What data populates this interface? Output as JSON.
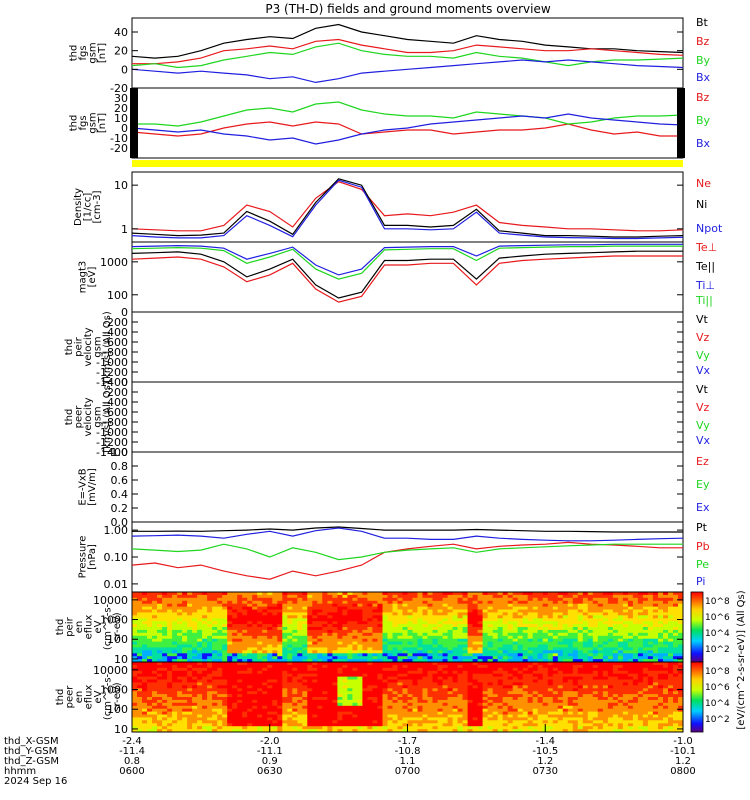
{
  "title": "P3 (TH-D) fields and ground moments overview",
  "footer": {
    "row_labels": [
      "thd_X-GSM",
      "thd_Y-GSM",
      "thd_Z-GSM",
      "hhmm",
      "2024 Sep 16"
    ],
    "x_gsm": [
      "-2.4",
      "-2.0",
      "-1.7",
      "-1.4",
      "-1.0"
    ],
    "y_gsm": [
      "-11.4",
      "-11.1",
      "-10.8",
      "-10.5",
      "-10.1"
    ],
    "z_gsm": [
      "0.8",
      "0.9",
      "1.1",
      "1.2",
      "1.2"
    ],
    "hhmm": [
      "0600",
      "0630",
      "0700",
      "0730",
      "0800"
    ]
  },
  "colorbar": {
    "label": "[eV/(cm^2-s-sr-eV)] (All Qs)",
    "ticks": [
      "10^8",
      "10^6",
      "10^4",
      "10^2"
    ]
  },
  "colors": {
    "black": "#000000",
    "red": "#e8191c",
    "green": "#1fd61f",
    "blue": "#1f1fe0",
    "yellow": "#ffff00"
  },
  "chart_data": [
    {
      "id": "fgs",
      "type": "line",
      "ylabel": [
        "thd",
        "fgs",
        "gsm",
        "[nT]"
      ],
      "ylim": [
        -20,
        55
      ],
      "yticks": [
        "40",
        "20",
        "0",
        "-20"
      ],
      "ytick_values": [
        40,
        20,
        0,
        -20
      ],
      "legend": [
        {
          "name": "Bt",
          "color": "#000000"
        },
        {
          "name": "Bz",
          "color": "#e8191c"
        },
        {
          "name": "By",
          "color": "#1fd61f"
        },
        {
          "name": "Bx",
          "color": "#1f1fe0"
        }
      ],
      "x": [
        0,
        5,
        10,
        15,
        20,
        25,
        30,
        35,
        40,
        45,
        50,
        55,
        60,
        65,
        70,
        75,
        80,
        85,
        90,
        95,
        100,
        105,
        110,
        115,
        120
      ],
      "series": [
        {
          "values": [
            14,
            12,
            14,
            20,
            28,
            32,
            35,
            33,
            44,
            48,
            40,
            36,
            32,
            30,
            28,
            36,
            32,
            30,
            26,
            24,
            22,
            22,
            20,
            19,
            18
          ]
        },
        {
          "values": [
            6,
            6,
            8,
            12,
            20,
            22,
            25,
            22,
            30,
            32,
            26,
            22,
            18,
            18,
            20,
            26,
            24,
            22,
            20,
            20,
            22,
            20,
            18,
            16,
            15
          ]
        },
        {
          "values": [
            4,
            6,
            2,
            4,
            10,
            14,
            18,
            16,
            24,
            28,
            20,
            16,
            14,
            14,
            12,
            18,
            14,
            12,
            8,
            4,
            8,
            10,
            10,
            11,
            12
          ]
        },
        {
          "values": [
            0,
            -2,
            -4,
            -2,
            -4,
            -6,
            -10,
            -8,
            -14,
            -10,
            -4,
            -2,
            0,
            2,
            4,
            6,
            8,
            10,
            8,
            10,
            8,
            6,
            4,
            3,
            2
          ]
        }
      ]
    },
    {
      "id": "fgs_components",
      "type": "line",
      "ylabel": [
        "thd",
        "fgs",
        "gsm",
        "[nT]"
      ],
      "ylim": [
        -30,
        40
      ],
      "yticks": [
        "30",
        "20",
        "10",
        "0",
        "-10",
        "-20"
      ],
      "ytick_values": [
        30,
        20,
        10,
        0,
        -10,
        -20
      ],
      "legend": [
        {
          "name": "Bz",
          "color": "#e8191c"
        },
        {
          "name": "By",
          "color": "#1fd61f"
        },
        {
          "name": "Bx",
          "color": "#1f1fe0"
        }
      ],
      "x": [
        0,
        5,
        10,
        15,
        20,
        25,
        30,
        35,
        40,
        45,
        50,
        55,
        60,
        65,
        70,
        75,
        80,
        85,
        90,
        95,
        100,
        105,
        110,
        115,
        120
      ],
      "series": [
        {
          "values": [
            -4,
            -6,
            -8,
            -6,
            0,
            4,
            6,
            2,
            6,
            4,
            -6,
            -4,
            -2,
            -2,
            -6,
            -4,
            -2,
            -2,
            0,
            4,
            -2,
            -6,
            -4,
            -8,
            -8
          ]
        },
        {
          "values": [
            4,
            4,
            2,
            6,
            12,
            18,
            20,
            16,
            24,
            26,
            18,
            14,
            12,
            12,
            10,
            16,
            14,
            12,
            10,
            4,
            6,
            10,
            12,
            12,
            13
          ]
        },
        {
          "values": [
            0,
            -2,
            -4,
            -2,
            -6,
            -8,
            -12,
            -10,
            -16,
            -12,
            -6,
            -2,
            0,
            4,
            6,
            8,
            10,
            12,
            10,
            14,
            10,
            8,
            6,
            4,
            3
          ]
        }
      ]
    },
    {
      "id": "density",
      "type": "line",
      "yscale": "log",
      "ylabel": [
        "Density",
        "[1/cc]",
        "[cm-3]"
      ],
      "ylim": [
        0.5,
        20
      ],
      "yticks": [
        "10",
        "1"
      ],
      "ytick_values": [
        10,
        1
      ],
      "legend": [
        {
          "name": "Ne",
          "color": "#e8191c"
        },
        {
          "name": "Ni",
          "color": "#000000"
        },
        {
          "name": "Npot",
          "color": "#1f1fe0"
        }
      ],
      "x": [
        0,
        5,
        10,
        15,
        20,
        25,
        30,
        35,
        40,
        45,
        50,
        55,
        60,
        65,
        70,
        75,
        80,
        85,
        90,
        95,
        100,
        105,
        110,
        115,
        120
      ],
      "series": [
        {
          "values": [
            1.0,
            0.95,
            0.9,
            0.9,
            1.2,
            3.5,
            2.5,
            1.1,
            5.0,
            12,
            8,
            2.0,
            2.2,
            2.0,
            2.4,
            3.5,
            1.4,
            1.2,
            1.1,
            1.0,
            1.0,
            0.95,
            0.9,
            0.9,
            0.95
          ]
        },
        {
          "values": [
            0.8,
            0.75,
            0.7,
            0.72,
            0.8,
            2.5,
            1.5,
            0.75,
            4.0,
            14,
            10,
            1.2,
            1.2,
            1.1,
            1.2,
            2.8,
            0.9,
            0.8,
            0.7,
            0.7,
            0.68,
            0.65,
            0.65,
            0.68,
            0.7
          ]
        },
        {
          "values": [
            0.7,
            0.65,
            0.62,
            0.62,
            0.7,
            2.0,
            1.2,
            0.66,
            3.5,
            13,
            9,
            1.0,
            1.0,
            0.95,
            1.0,
            2.4,
            0.8,
            0.72,
            0.65,
            0.63,
            0.62,
            0.6,
            0.6,
            0.62,
            0.64
          ]
        }
      ]
    },
    {
      "id": "temperature",
      "type": "line",
      "yscale": "log",
      "ylabel": [
        "magt3",
        "[eV]"
      ],
      "ylim": [
        30,
        4000
      ],
      "yticks": [
        "1000",
        "100"
      ],
      "ytick_values": [
        1000,
        100
      ],
      "legend": [
        {
          "name": "Te⊥",
          "color": "#e8191c"
        },
        {
          "name": "Te||",
          "color": "#000000"
        },
        {
          "name": "Ti⊥",
          "color": "#1f1fe0"
        },
        {
          "name": "Ti||",
          "color": "#1fd61f"
        }
      ],
      "x": [
        0,
        5,
        10,
        15,
        20,
        25,
        30,
        35,
        40,
        45,
        50,
        55,
        60,
        65,
        70,
        75,
        80,
        85,
        90,
        95,
        100,
        105,
        110,
        115,
        120
      ],
      "series": [
        {
          "values": [
            1200,
            1300,
            1400,
            1200,
            700,
            250,
            400,
            900,
            150,
            60,
            90,
            800,
            800,
            900,
            900,
            200,
            900,
            1100,
            1200,
            1300,
            1400,
            1500,
            1500,
            1500,
            1500
          ]
        },
        {
          "values": [
            1800,
            1900,
            2000,
            1700,
            1000,
            350,
            600,
            1200,
            200,
            80,
            120,
            1100,
            1100,
            1200,
            1200,
            300,
            1300,
            1500,
            1700,
            1800,
            1900,
            2000,
            2100,
            2100,
            2100
          ]
        },
        {
          "values": [
            2900,
            3000,
            3100,
            3000,
            2600,
            1200,
            1800,
            2800,
            800,
            400,
            600,
            2700,
            2800,
            2900,
            2900,
            1500,
            3000,
            3100,
            3200,
            3300,
            3300,
            3400,
            3400,
            3400,
            3400
          ]
        },
        {
          "values": [
            2500,
            2600,
            2700,
            2600,
            2200,
            900,
            1400,
            2400,
            600,
            300,
            450,
            2300,
            2400,
            2500,
            2500,
            1100,
            2600,
            2700,
            2800,
            2900,
            2900,
            3000,
            3000,
            3000,
            3000
          ]
        }
      ]
    },
    {
      "id": "peir_velocity",
      "type": "line",
      "ylabel": [
        "thd",
        "peir",
        "velocity",
        "gsm",
        "[km/s] (All Qs)"
      ],
      "ylim": [
        -1400,
        0
      ],
      "yticks": [
        "0",
        "-200",
        "-400",
        "-600",
        "-800",
        "-1000",
        "-1200",
        "-1400"
      ],
      "ytick_values": [
        0,
        -200,
        -400,
        -600,
        -800,
        -1000,
        -1200,
        -1400
      ],
      "legend": [
        {
          "name": "Vt",
          "color": "#000000"
        },
        {
          "name": "Vz",
          "color": "#e8191c"
        },
        {
          "name": "Vy",
          "color": "#1fd61f"
        },
        {
          "name": "Vx",
          "color": "#1f1fe0"
        }
      ]
    },
    {
      "id": "peer_velocity",
      "type": "line",
      "ylabel": [
        "thd",
        "peer",
        "velocity",
        "gsm",
        "[km/s] (All Qs)"
      ],
      "ylim": [
        -1400,
        0
      ],
      "yticks": [
        "0",
        "-200",
        "-400",
        "-600",
        "-800",
        "-1000",
        "-1200",
        "-1400"
      ],
      "ytick_values": [
        0,
        -200,
        -400,
        -600,
        -800,
        -1000,
        -1200,
        -1400
      ],
      "legend": [
        {
          "name": "Vt",
          "color": "#000000"
        },
        {
          "name": "Vz",
          "color": "#e8191c"
        },
        {
          "name": "Vy",
          "color": "#1fd61f"
        },
        {
          "name": "Vx",
          "color": "#1f1fe0"
        }
      ]
    },
    {
      "id": "efield",
      "type": "line",
      "ylabel": [
        "E=-VxB",
        "[mV/m]"
      ],
      "ylim": [
        0,
        1
      ],
      "yticks": [
        "1.0",
        "0.8",
        "0.6",
        "0.4",
        "0.2",
        "0.0"
      ],
      "ytick_values": [
        1.0,
        0.8,
        0.6,
        0.4,
        0.2,
        0.0
      ],
      "legend": [
        {
          "name": "Ez",
          "color": "#e8191c"
        },
        {
          "name": "Ey",
          "color": "#1fd61f"
        },
        {
          "name": "Ex",
          "color": "#1f1fe0"
        }
      ]
    },
    {
      "id": "pressure",
      "type": "line",
      "yscale": "log",
      "ylabel": [
        "Pressure",
        "[nPa]"
      ],
      "ylim": [
        0.005,
        2
      ],
      "yticks": [
        "1.00",
        "0.10",
        "0.01"
      ],
      "ytick_values": [
        1.0,
        0.1,
        0.01
      ],
      "legend": [
        {
          "name": "Pt",
          "color": "#000000"
        },
        {
          "name": "Pb",
          "color": "#e8191c"
        },
        {
          "name": "Pe",
          "color": "#1fd61f"
        },
        {
          "name": "Pi",
          "color": "#1f1fe0"
        }
      ],
      "x": [
        0,
        5,
        10,
        15,
        20,
        25,
        30,
        35,
        40,
        45,
        50,
        55,
        60,
        65,
        70,
        75,
        80,
        85,
        90,
        95,
        100,
        105,
        110,
        115,
        120
      ],
      "series": [
        {
          "values": [
            0.9,
            0.9,
            0.92,
            0.9,
            0.95,
            1.0,
            1.1,
            1.0,
            1.2,
            1.3,
            1.15,
            1.0,
            1.0,
            1.0,
            1.0,
            1.05,
            1.0,
            0.95,
            0.9,
            0.9,
            0.88,
            0.85,
            0.85,
            0.85,
            0.85
          ]
        },
        {
          "values": [
            0.05,
            0.06,
            0.04,
            0.05,
            0.03,
            0.02,
            0.015,
            0.03,
            0.02,
            0.03,
            0.05,
            0.15,
            0.2,
            0.25,
            0.3,
            0.2,
            0.25,
            0.28,
            0.3,
            0.35,
            0.3,
            0.28,
            0.25,
            0.22,
            0.22
          ]
        },
        {
          "values": [
            0.2,
            0.18,
            0.16,
            0.18,
            0.3,
            0.2,
            0.1,
            0.22,
            0.15,
            0.08,
            0.1,
            0.15,
            0.18,
            0.2,
            0.22,
            0.15,
            0.2,
            0.22,
            0.24,
            0.26,
            0.28,
            0.3,
            0.3,
            0.3,
            0.3
          ]
        },
        {
          "values": [
            0.6,
            0.62,
            0.65,
            0.6,
            0.5,
            0.7,
            0.9,
            0.6,
            0.95,
            1.2,
            0.9,
            0.5,
            0.5,
            0.45,
            0.45,
            0.6,
            0.5,
            0.45,
            0.42,
            0.4,
            0.4,
            0.42,
            0.45,
            0.48,
            0.5
          ]
        }
      ]
    },
    {
      "id": "peir_eflux",
      "type": "heatmap",
      "ylabel": [
        "thd",
        "peir",
        "en",
        "eflux",
        "eV",
        "(cm^2-s-",
        "sr-eV)"
      ],
      "yscale": "log",
      "ylim": [
        7,
        25000
      ],
      "yticks": [
        "10000",
        "1000",
        "100",
        "10"
      ],
      "ytick_values": [
        10000,
        1000,
        100,
        10
      ]
    },
    {
      "id": "peer_eflux",
      "type": "heatmap",
      "ylabel": [
        "thd",
        "peer",
        "en",
        "eflux",
        "eV",
        "(cm^2-s-",
        "sr-eV)"
      ],
      "yscale": "log",
      "ylim": [
        7,
        25000
      ],
      "yticks": [
        "10000",
        "1000",
        "100",
        "10"
      ],
      "ytick_values": [
        10000,
        1000,
        100,
        10
      ]
    }
  ]
}
